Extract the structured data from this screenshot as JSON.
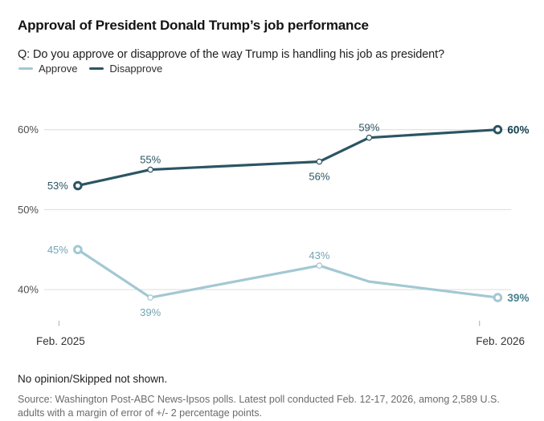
{
  "header": {
    "title": "Approval of President Donald Trump’s job performance",
    "question": "Q: Do you approve or disapprove of the way Trump is handling his job as president?"
  },
  "legend": {
    "items": [
      {
        "label": "Approve",
        "color": "#a2c8d3"
      },
      {
        "label": "Disapprove",
        "color": "#2b5563"
      }
    ]
  },
  "axis_style": {
    "gridline_color": "#dcdcdc",
    "tick_color": "#a9a9a9",
    "y_label_color": "#4c4c4c",
    "x_label_color": "#333333"
  },
  "footer": {
    "note": "No opinion/Skipped not shown.",
    "source": "Source: Washington Post-ABC News-Ipsos polls. Latest poll conducted Feb. 12-17, 2026, among 2,589 U.S. adults with a margin of error of +/- 2 percentage points."
  },
  "chart_data": {
    "type": "line",
    "title": "Approval of President Donald Trump’s job performance",
    "x_axis": {
      "unit": "months since Feb. 2025",
      "ticks": [
        {
          "label": "Feb. 2025",
          "month": 0,
          "align": "start"
        },
        {
          "label": "Feb. 2026",
          "month": 12,
          "align": "end"
        }
      ]
    },
    "y_axis": {
      "ticks": [
        60,
        50,
        40
      ],
      "suffix": "%",
      "ylim": [
        36,
        63
      ],
      "gridlines": true
    },
    "legend_position": "top-left",
    "series": [
      {
        "name": "Disapprove",
        "color": "#2b5563",
        "label_color": "#2b5563",
        "end_label_color": "#15404f",
        "points": [
          {
            "month": 0.54,
            "value": 53,
            "label": "53%",
            "label_side": "left",
            "marker": "ring"
          },
          {
            "month": 2.61,
            "value": 55,
            "label": "55%",
            "label_side": "above",
            "marker": "dot"
          },
          {
            "month": 7.43,
            "value": 56,
            "label": "56%",
            "label_side": "below",
            "marker": "dot"
          },
          {
            "month": 8.85,
            "value": 59,
            "label": "59%",
            "label_side": "above",
            "marker": "dot"
          },
          {
            "month": 12.52,
            "value": 60,
            "label": "60%",
            "label_side": "right",
            "marker": "ring",
            "bold": true
          }
        ]
      },
      {
        "name": "Approve",
        "color": "#a2c8d3",
        "label_color": "#74a4b2",
        "end_label_color": "#47808f",
        "points": [
          {
            "month": 0.54,
            "value": 45,
            "label": "45%",
            "label_side": "left",
            "marker": "ring"
          },
          {
            "month": 2.61,
            "value": 39,
            "label": "39%",
            "label_side": "below",
            "marker": "dot"
          },
          {
            "month": 7.43,
            "value": 43,
            "label": "43%",
            "label_side": "above",
            "marker": "dot"
          },
          {
            "month": 8.85,
            "value": 41,
            "label": "",
            "label_side": "none",
            "marker": "none"
          },
          {
            "month": 12.52,
            "value": 39,
            "label": "39%",
            "label_side": "right",
            "marker": "ring",
            "bold": true
          }
        ]
      }
    ]
  }
}
